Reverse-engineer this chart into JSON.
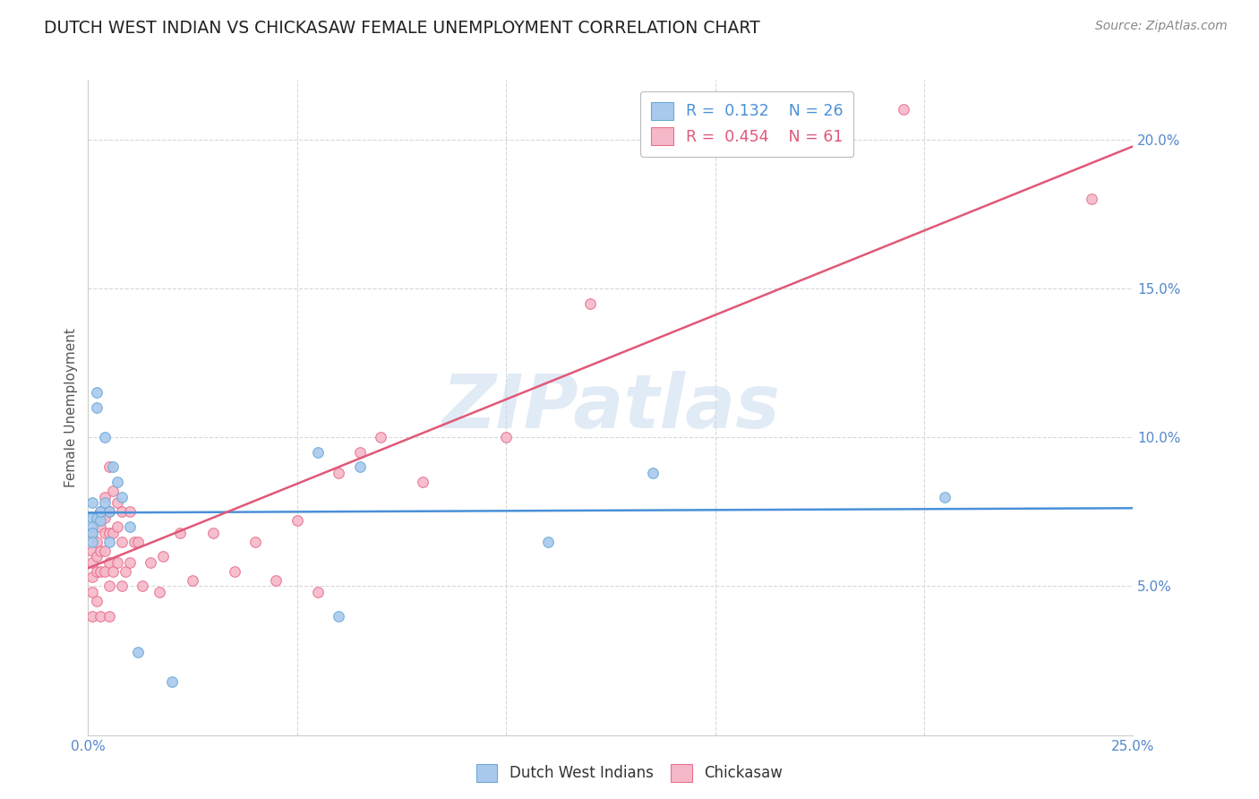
{
  "title": "DUTCH WEST INDIAN VS CHICKASAW FEMALE UNEMPLOYMENT CORRELATION CHART",
  "source": "Source: ZipAtlas.com",
  "ylabel": "Female Unemployment",
  "xlim": [
    0.0,
    0.25
  ],
  "ylim": [
    0.0,
    0.22
  ],
  "xticks": [
    0.0,
    0.05,
    0.1,
    0.15,
    0.2,
    0.25
  ],
  "xticklabels_shown": [
    "0.0%",
    "",
    "",
    "",
    "",
    "25.0%"
  ],
  "yticks": [
    0.05,
    0.1,
    0.15,
    0.2
  ],
  "yticklabels": [
    "5.0%",
    "10.0%",
    "15.0%",
    "20.0%"
  ],
  "background_color": "#ffffff",
  "grid_color": "#d8d8d8",
  "watermark_text": "ZIPatlas",
  "dutch_R": 0.132,
  "dutch_N": 26,
  "chickasaw_R": 0.454,
  "chickasaw_N": 61,
  "dutch_fill_color": "#aac9ee",
  "dutch_edge_color": "#6aaad4",
  "chickasaw_fill_color": "#f5b8c8",
  "chickasaw_edge_color": "#e87090",
  "dutch_line_color": "#4a90d9",
  "chickasaw_line_color": "#e05878",
  "dutch_x": [
    0.001,
    0.001,
    0.001,
    0.001,
    0.001,
    0.002,
    0.002,
    0.002,
    0.003,
    0.003,
    0.004,
    0.004,
    0.005,
    0.005,
    0.006,
    0.007,
    0.008,
    0.01,
    0.012,
    0.02,
    0.055,
    0.06,
    0.065,
    0.11,
    0.135,
    0.205
  ],
  "dutch_y": [
    0.078,
    0.073,
    0.07,
    0.068,
    0.065,
    0.073,
    0.11,
    0.115,
    0.072,
    0.075,
    0.078,
    0.1,
    0.075,
    0.065,
    0.09,
    0.085,
    0.08,
    0.07,
    0.028,
    0.018,
    0.095,
    0.04,
    0.09,
    0.065,
    0.088,
    0.08
  ],
  "chickasaw_x": [
    0.001,
    0.001,
    0.001,
    0.001,
    0.001,
    0.001,
    0.002,
    0.002,
    0.002,
    0.002,
    0.002,
    0.003,
    0.003,
    0.003,
    0.003,
    0.003,
    0.004,
    0.004,
    0.004,
    0.004,
    0.004,
    0.005,
    0.005,
    0.005,
    0.005,
    0.005,
    0.005,
    0.006,
    0.006,
    0.006,
    0.007,
    0.007,
    0.007,
    0.008,
    0.008,
    0.008,
    0.009,
    0.01,
    0.01,
    0.011,
    0.012,
    0.013,
    0.015,
    0.017,
    0.018,
    0.022,
    0.025,
    0.03,
    0.035,
    0.04,
    0.045,
    0.05,
    0.055,
    0.06,
    0.065,
    0.07,
    0.08,
    0.1,
    0.12,
    0.195,
    0.24
  ],
  "chickasaw_y": [
    0.068,
    0.062,
    0.058,
    0.053,
    0.048,
    0.04,
    0.072,
    0.065,
    0.06,
    0.055,
    0.045,
    0.075,
    0.07,
    0.062,
    0.055,
    0.04,
    0.08,
    0.073,
    0.068,
    0.062,
    0.055,
    0.09,
    0.075,
    0.068,
    0.058,
    0.05,
    0.04,
    0.082,
    0.068,
    0.055,
    0.078,
    0.07,
    0.058,
    0.075,
    0.065,
    0.05,
    0.055,
    0.075,
    0.058,
    0.065,
    0.065,
    0.05,
    0.058,
    0.048,
    0.06,
    0.068,
    0.052,
    0.068,
    0.055,
    0.065,
    0.052,
    0.072,
    0.048,
    0.088,
    0.095,
    0.1,
    0.085,
    0.1,
    0.145,
    0.21,
    0.18
  ],
  "marker_size": 70,
  "title_fontsize": 13.5,
  "axis_label_fontsize": 11,
  "tick_fontsize": 11,
  "legend_fontsize": 12.5,
  "source_fontsize": 10
}
